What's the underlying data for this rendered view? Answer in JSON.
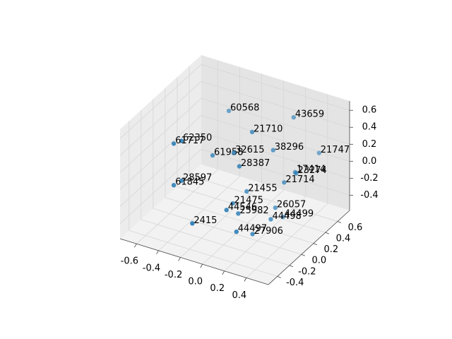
{
  "chart_data": {
    "type": "scatter3d",
    "xlim": [
      -0.75,
      0.6
    ],
    "ylim": [
      -0.55,
      0.8
    ],
    "zlim": [
      -0.58,
      0.71
    ],
    "xticks": [
      -0.6,
      -0.4,
      -0.2,
      {
        "value": 0,
        "label": "0.0"
      },
      0.2,
      0.4
    ],
    "yticks": [
      -0.4,
      -0.2,
      {
        "value": 0,
        "label": "0.0"
      },
      0.2,
      0.4,
      0.6
    ],
    "zticks": [
      -0.4,
      -0.2,
      {
        "value": 0,
        "label": "0.0"
      },
      0.2,
      0.4,
      0.6
    ],
    "grid": true,
    "series": [
      {
        "color": "#1f77b4",
        "labels": [
          "60568",
          "43659",
          "21710",
          "62350",
          "61717",
          "38296",
          "21747",
          "61958",
          "32615",
          "28387",
          "17414",
          "23274",
          "21714",
          "28597",
          "61845",
          "21455",
          "21475",
          "44546",
          "25982",
          "26057",
          "44499",
          "44498",
          "2415",
          "44497",
          "27906"
        ],
        "x": [
          -0.28,
          0.31,
          0.08,
          -0.41,
          -0.48,
          0.2,
          0.47,
          -0.28,
          -0.01,
          0.04,
          0.4,
          0.41,
          0.3,
          -0.41,
          -0.48,
          0.03,
          -0.02,
          0.0,
          0.03,
          0.22,
          0.29,
          0.25,
          -0.24,
          0.09,
          0.16
        ],
        "y": [
          0.4,
          0.4,
          0.13,
          -0.15,
          -0.15,
          0.26,
          0.53,
          0.13,
          -0.01,
          -0.01,
          0.26,
          0.26,
          0.26,
          -0.15,
          -0.15,
          0.13,
          -0.01,
          -0.15,
          -0.01,
          0.26,
          0.26,
          0.13,
          -0.28,
          -0.15,
          -0.01
        ],
        "z": [
          0.5,
          0.66,
          0.57,
          0.45,
          0.39,
          0.32,
          0.22,
          0.15,
          0.38,
          0.24,
          0.14,
          0.13,
          -0.02,
          -0.02,
          -0.1,
          -0.15,
          -0.22,
          -0.2,
          -0.32,
          -0.35,
          -0.43,
          -0.39,
          -0.37,
          -0.42,
          -0.51
        ]
      }
    ]
  }
}
